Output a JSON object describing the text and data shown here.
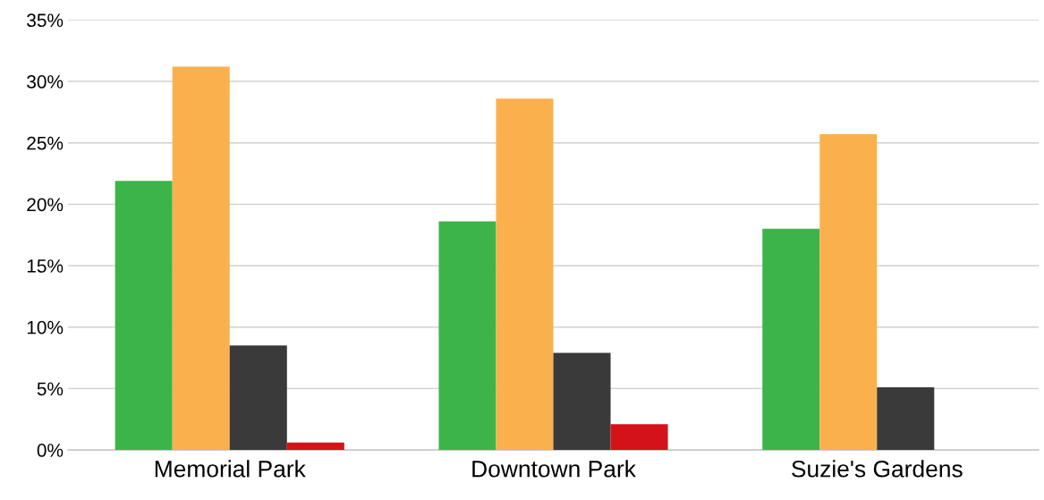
{
  "chart_data": {
    "type": "bar",
    "categories": [
      "Memorial Park",
      "Downtown Park",
      "Suzie's Gardens"
    ],
    "series": [
      {
        "color": "#3cb44a",
        "values": [
          21.9,
          18.6,
          18.0
        ]
      },
      {
        "color": "#fbb04e",
        "values": [
          31.2,
          28.6,
          25.7
        ]
      },
      {
        "color": "#3a3a3a",
        "values": [
          8.5,
          7.9,
          5.1
        ]
      },
      {
        "color": "#d4121a",
        "values": [
          0.6,
          2.1,
          0
        ]
      }
    ],
    "ylim": [
      0,
      35
    ],
    "yticks": [
      {
        "value": 0,
        "label": "0%"
      },
      {
        "value": 5,
        "label": "5%"
      },
      {
        "value": 10,
        "label": "10%"
      },
      {
        "value": 15,
        "label": "15%"
      },
      {
        "value": 20,
        "label": "20%"
      },
      {
        "value": 25,
        "label": "25%"
      },
      {
        "value": 30,
        "label": "30%"
      },
      {
        "value": 35,
        "label": "35%"
      }
    ],
    "grid": "y"
  }
}
